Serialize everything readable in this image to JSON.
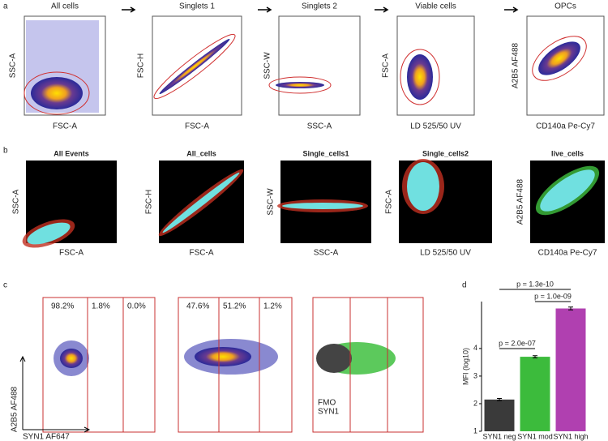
{
  "panel_labels": [
    "a",
    "b",
    "c",
    "d"
  ],
  "row_a": {
    "plots": [
      {
        "title": "All cells",
        "xlabel": "FSC-A",
        "ylabel": "SSC-A"
      },
      {
        "title": "Singlets 1",
        "xlabel": "FSC-A",
        "ylabel": "FSC-H"
      },
      {
        "title": "Singlets 2",
        "xlabel": "SSC-A",
        "ylabel": "SSC-W"
      },
      {
        "title": "Viable cells",
        "xlabel": "LD 525/50 UV",
        "ylabel": "FSC-A"
      },
      {
        "title": "OPCs",
        "xlabel": "CD140a Pe-Cy7",
        "ylabel": "A2B5 AF488"
      }
    ]
  },
  "row_b": {
    "plots": [
      {
        "title": "All Events",
        "title_color": "#000000",
        "xlabel": "FSC-A",
        "ylabel": "SSC-A"
      },
      {
        "title": "All_cells",
        "title_color": "#e0281e",
        "xlabel": "FSC-A",
        "ylabel": "FSC-H"
      },
      {
        "title": "Single_cells1",
        "title_color": "#f07818",
        "xlabel": "SSC-A",
        "ylabel": "SSC-W"
      },
      {
        "title": "Single_cells2",
        "title_color": "#c8d820",
        "xlabel": "LD 525/50 UV",
        "ylabel": "FSC-A"
      },
      {
        "title": "live_cells",
        "title_color": "#30b030",
        "xlabel": "CD140a Pe-Cy7",
        "ylabel": "A2B5 AF488"
      }
    ]
  },
  "row_c": {
    "ylabel": "A2B5 AF488",
    "xlabel": "SYN1 AF647",
    "plots": [
      {
        "gates": [
          "98.2%",
          "1.8%",
          "0.0%"
        ]
      },
      {
        "gates": [
          "47.6%",
          "51.2%",
          "1.2%"
        ]
      }
    ],
    "legend": [
      {
        "name": "FMO",
        "color": "#444444"
      },
      {
        "name": "SYN1",
        "color": "#cc44cc"
      }
    ]
  },
  "chart_data": {
    "type": "bar",
    "ylabel": "MFI (log10)",
    "categories": [
      "SYN1 neg",
      "SYN1 mod",
      "SYN1 high"
    ],
    "values": [
      2.15,
      3.7,
      5.45
    ],
    "errors": [
      0.04,
      0.04,
      0.05
    ],
    "colors": [
      "#3a3a3a",
      "#3cbb3c",
      "#b040b0"
    ],
    "ylim": [
      1,
      5.7
    ],
    "yticks": [
      1,
      2,
      3,
      4
    ],
    "annotations": [
      {
        "text": "p = 1.3e-10",
        "from": 0,
        "to": 2
      },
      {
        "text": "p = 1.0e-09",
        "from": 1,
        "to": 2
      },
      {
        "text": "p = 2.0e-07",
        "from": 0,
        "to": 1
      }
    ]
  }
}
